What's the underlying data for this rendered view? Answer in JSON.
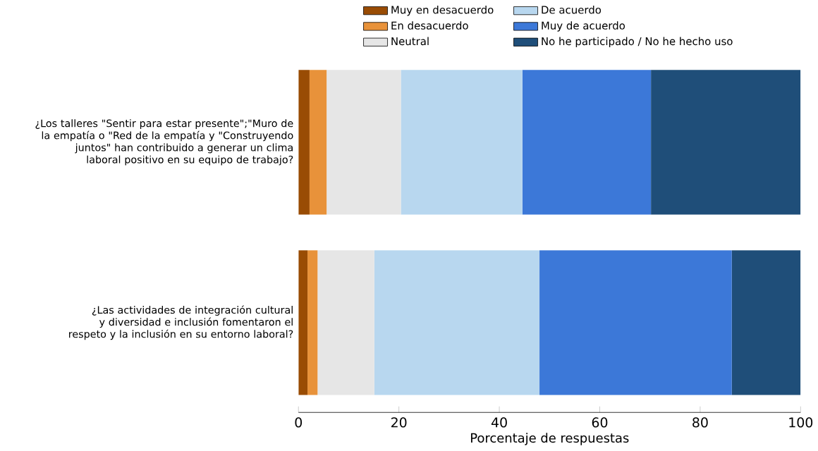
{
  "chart_data": {
    "type": "bar",
    "orientation": "horizontal",
    "stacked": true,
    "categories": [
      "¿Los talleres   \"Sentir para estar presente\";\"Muro de la empatía o \"Red   de la empatía y \"Construyendo juntos\" han contribuido a generar un clima laboral positivo en su equipo de trabajo?",
      "¿Las   actividades de integración cultural y diversidad e inclusión fomentaron el respeto y la inclusión en su entorno laboral?"
    ],
    "series": [
      {
        "name": "Muy en desacuerdo",
        "color": "#994c04",
        "values": [
          2.2,
          1.8
        ]
      },
      {
        "name": "En desacuerdo",
        "color": "#e8923a",
        "values": [
          3.4,
          2.0
        ]
      },
      {
        "name": "Neutral",
        "color": "#e6e6e6",
        "values": [
          14.8,
          11.3
        ]
      },
      {
        "name": "De acuerdo",
        "color": "#b8d7ef",
        "values": [
          24.2,
          32.9
        ]
      },
      {
        "name": "Muy de acuerdo",
        "color": "#3c78d8",
        "values": [
          25.6,
          38.3
        ]
      },
      {
        "name": "No he participado / No he hecho uso",
        "color": "#1f4e79",
        "values": [
          29.8,
          13.7
        ]
      }
    ],
    "xlim": [
      0,
      100
    ],
    "xticks": [
      0,
      20,
      40,
      60,
      80,
      100
    ],
    "xlabel": "Porcentaje de respuestas",
    "legend": "top",
    "grid": false
  }
}
